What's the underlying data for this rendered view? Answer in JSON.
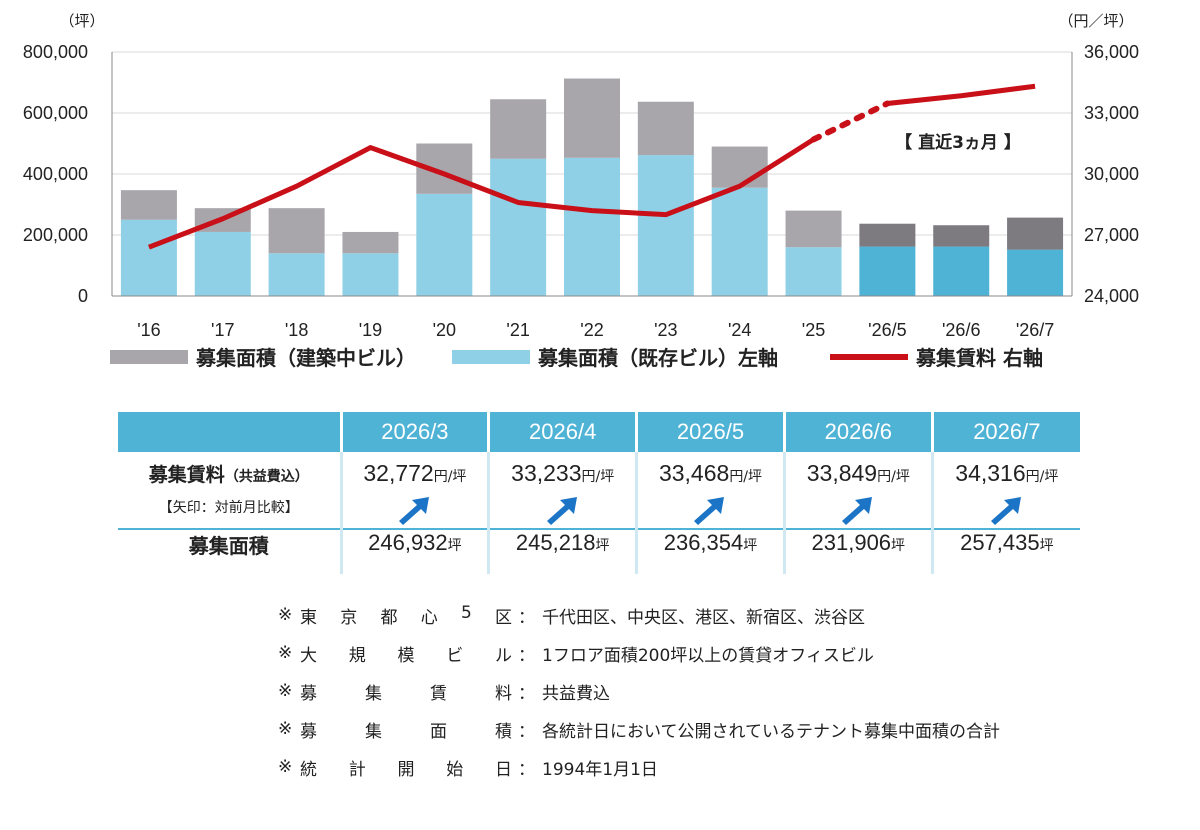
{
  "chart_data": {
    "type": "bar",
    "left_unit": "（坪）",
    "right_unit": "（円／坪）",
    "categories": [
      "'16",
      "'17",
      "'18",
      "'19",
      "'20",
      "'21",
      "'22",
      "'23",
      "'24",
      "'25",
      "'26/5",
      "'26/6",
      "'26/7"
    ],
    "left_axis": {
      "ticks": [
        "800,000",
        "600,000",
        "400,000",
        "200,000",
        "0"
      ],
      "ylim": [
        0,
        800000
      ]
    },
    "right_axis": {
      "ticks": [
        "36,000",
        "33,000",
        "30,000",
        "27,000",
        "24,000"
      ],
      "ylim": [
        24000,
        36000
      ]
    },
    "series": [
      {
        "name": "募集面積（既存ビル）左軸",
        "type": "bar",
        "axis": "left",
        "values": [
          250000,
          210000,
          140000,
          140000,
          335000,
          450000,
          453000,
          462000,
          355000,
          160000,
          162000,
          162000,
          152000
        ]
      },
      {
        "name": "募集面積（建築中ビル）",
        "type": "bar",
        "axis": "left",
        "stacked": true,
        "values": [
          97000,
          78000,
          148000,
          70000,
          165000,
          195000,
          260000,
          175000,
          135000,
          120000,
          75000,
          70000,
          105000
        ]
      },
      {
        "name": "募集賃料 右軸",
        "type": "line",
        "axis": "right",
        "values": [
          26400,
          27800,
          29400,
          31300,
          30000,
          28600,
          28200,
          28000,
          29400,
          31700,
          33468,
          33849,
          34316
        ]
      }
    ],
    "annotation": "【 直近3ヵ月 】",
    "colors": {
      "existing": "#8fd0e6",
      "existing_recent": "#4fb3d6",
      "construction": "#a8a6ab",
      "construction_recent": "#7d7b80",
      "rent_line": "#c90f17",
      "gridline": "#d9d9d9"
    }
  },
  "table": {
    "headers": [
      "2026/3",
      "2026/4",
      "2026/5",
      "2026/6",
      "2026/7"
    ],
    "rent_label": "募集賃料",
    "rent_label_small": "（共益費込）",
    "rent_note": "【矢印：対前月比較】",
    "rent_values": [
      "32,772",
      "33,233",
      "33,468",
      "33,849",
      "34,316"
    ],
    "rent_unit": "円/坪",
    "arrow_icon": "up-right-arrow-icon",
    "area_label": "募集面積",
    "area_values": [
      "246,932",
      "245,218",
      "236,354",
      "231,906",
      "257,435"
    ],
    "area_unit": "坪"
  },
  "notes": [
    {
      "mark": "※",
      "key": [
        "東",
        "京",
        "都",
        "心",
        "5",
        "区"
      ],
      "sep": "：",
      "value": "千代田区、中央区、港区、新宿区、渋谷区"
    },
    {
      "mark": "※",
      "key": [
        "大",
        "規",
        "模",
        "ビ",
        "ル"
      ],
      "sep": "：",
      "value": "1フロア面積200坪以上の賃貸オフィスビル"
    },
    {
      "mark": "※",
      "key": [
        "募",
        "集",
        "賃",
        "料"
      ],
      "sep": "：",
      "value": "共益費込"
    },
    {
      "mark": "※",
      "key": [
        "募",
        "集",
        "面",
        "積"
      ],
      "sep": "：",
      "value": "各統計日において公開されているテナント募集中面積の合計"
    },
    {
      "mark": "※",
      "key": [
        "統",
        "計",
        "開",
        "始",
        "日"
      ],
      "sep": "：",
      "value": "1994年1月1日"
    }
  ]
}
